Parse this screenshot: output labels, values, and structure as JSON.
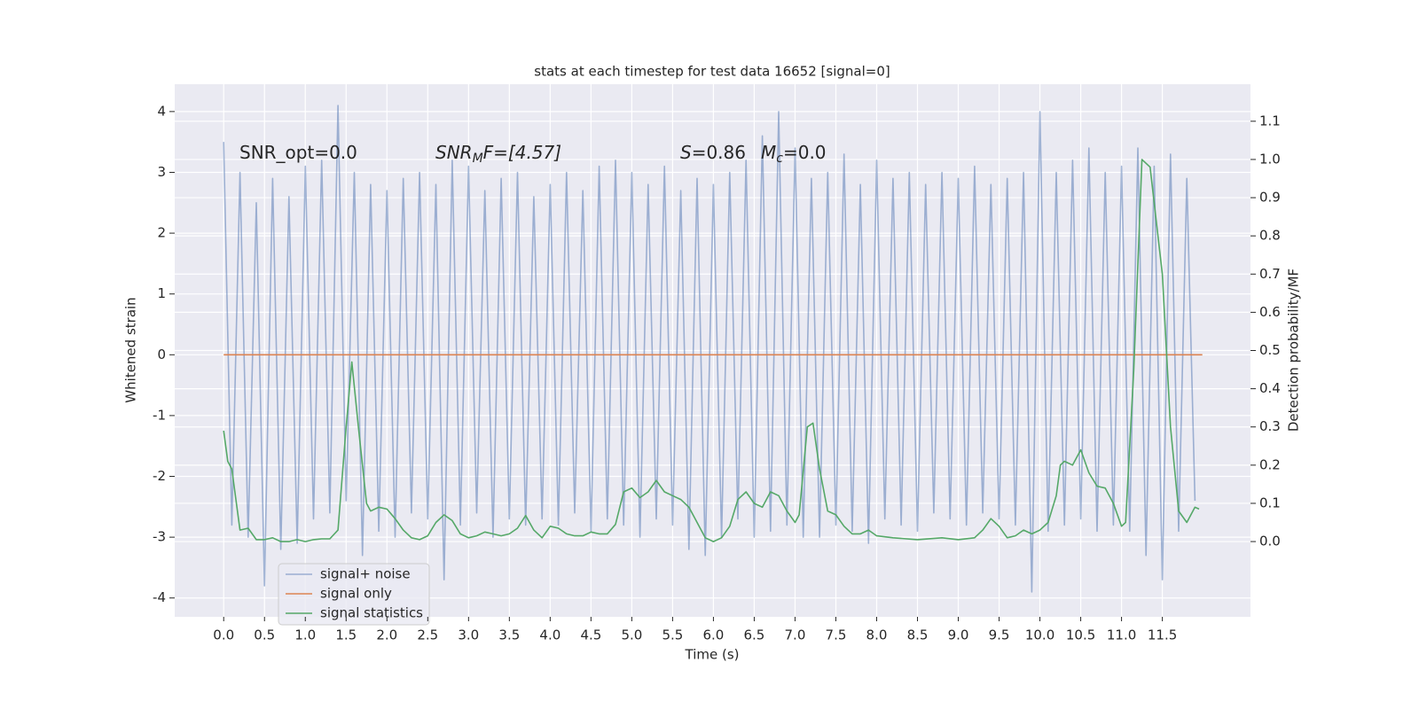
{
  "chart_data": {
    "type": "line",
    "title": "stats at each timestep for test data 16652 [signal=0]",
    "x_label": "Time (s)",
    "y_label": "Whitened strain",
    "y2_label": "Detection probability/MF",
    "xlim": [
      -0.6,
      12.58
    ],
    "ylim": [
      -4.31,
      4.45
    ],
    "y2lim": [
      -0.197,
      1.197
    ],
    "xticks": [
      {
        "value": 0,
        "label": "0.0"
      },
      0.5,
      {
        "value": 1,
        "label": "1.0"
      },
      1.5,
      {
        "value": 2,
        "label": "2.0"
      },
      2.5,
      {
        "value": 3,
        "label": "3.0"
      },
      3.5,
      {
        "value": 4,
        "label": "4.0"
      },
      4.5,
      {
        "value": 5,
        "label": "5.0"
      },
      5.5,
      {
        "value": 6,
        "label": "6.0"
      },
      6.5,
      {
        "value": 7,
        "label": "7.0"
      },
      7.5,
      {
        "value": 8,
        "label": "8.0"
      },
      8.5,
      {
        "value": 9,
        "label": "9.0"
      },
      9.5,
      {
        "value": 10,
        "label": "10.0"
      },
      10.5,
      {
        "value": 11,
        "label": "11.0"
      },
      11.5
    ],
    "yticks": [
      -4,
      -3,
      -2,
      -1,
      0,
      1,
      2,
      3,
      4
    ],
    "y2ticks": [
      {
        "value": 0,
        "label": "0.0"
      },
      0.1,
      0.2,
      0.3,
      0.4,
      0.5,
      0.6,
      0.7,
      0.8,
      0.9,
      {
        "value": 1,
        "label": "1.0"
      },
      1.1
    ],
    "grid": true,
    "legend": "lower left",
    "annotations": [
      [
        "SNR_opt=0.0"
      ],
      [
        "SNR",
        "M",
        "F=[4.57]"
      ],
      [
        "S",
        "=0.86"
      ],
      [
        "M",
        "c",
        "=0.0"
      ]
    ],
    "series": [
      {
        "name": "signal+ noise",
        "color": "#4c72b0",
        "opacity": 0.5,
        "x": [
          0.0,
          0.1,
          0.2,
          0.3,
          0.4,
          0.5,
          0.6,
          0.7,
          0.8,
          0.9,
          1.0,
          1.1,
          1.2,
          1.3,
          1.4,
          1.5,
          1.6,
          1.7,
          1.8,
          1.9,
          2.0,
          2.1,
          2.2,
          2.3,
          2.4,
          2.5,
          2.6,
          2.7,
          2.8,
          2.9,
          3.0,
          3.1,
          3.2,
          3.3,
          3.4,
          3.5,
          3.6,
          3.7,
          3.8,
          3.9,
          4.0,
          4.1,
          4.2,
          4.3,
          4.4,
          4.5,
          4.6,
          4.7,
          4.8,
          4.9,
          5.0,
          5.1,
          5.2,
          5.3,
          5.4,
          5.5,
          5.6,
          5.7,
          5.8,
          5.9,
          6.0,
          6.1,
          6.2,
          6.3,
          6.4,
          6.5,
          6.6,
          6.7,
          6.8,
          6.9,
          7.0,
          7.1,
          7.2,
          7.3,
          7.4,
          7.5,
          7.6,
          7.7,
          7.8,
          7.9,
          8.0,
          8.1,
          8.2,
          8.3,
          8.4,
          8.5,
          8.6,
          8.7,
          8.8,
          8.9,
          9.0,
          9.1,
          9.2,
          9.3,
          9.4,
          9.5,
          9.6,
          9.7,
          9.8,
          9.9,
          10.0,
          10.1,
          10.2,
          10.3,
          10.4,
          10.5,
          10.6,
          10.7,
          10.8,
          10.9,
          11.0,
          11.1,
          11.2,
          11.3,
          11.4,
          11.5,
          11.6,
          11.7,
          11.8,
          11.9
        ],
        "values": [
          3.5,
          -2.8,
          3.0,
          -3.0,
          2.5,
          -3.8,
          2.9,
          -3.2,
          2.6,
          -3.1,
          3.1,
          -2.7,
          3.2,
          -2.6,
          4.1,
          -2.4,
          3.0,
          -3.3,
          2.8,
          -2.9,
          2.7,
          -3.0,
          2.9,
          -2.6,
          3.0,
          -2.7,
          2.8,
          -3.7,
          3.2,
          -2.8,
          3.1,
          -2.6,
          2.7,
          -3.0,
          2.9,
          -2.7,
          3.0,
          -2.8,
          2.6,
          -2.7,
          2.8,
          -2.8,
          3.0,
          -2.6,
          2.7,
          -2.9,
          3.1,
          -2.7,
          3.2,
          -2.8,
          3.0,
          -3.0,
          2.8,
          -2.7,
          3.1,
          -2.8,
          2.7,
          -3.2,
          2.9,
          -3.3,
          2.8,
          -3.0,
          3.0,
          -2.7,
          3.2,
          -3.0,
          3.6,
          -2.9,
          4.0,
          -2.8,
          3.4,
          -3.0,
          2.9,
          -3.0,
          3.0,
          -2.8,
          3.3,
          -2.9,
          2.8,
          -3.1,
          3.2,
          -2.7,
          2.9,
          -2.8,
          3.0,
          -2.9,
          2.8,
          -2.6,
          3.0,
          -2.7,
          2.9,
          -2.8,
          3.1,
          -2.6,
          2.8,
          -2.7,
          2.9,
          -2.8,
          3.0,
          -3.9,
          4.0,
          -2.9,
          3.0,
          -2.8,
          3.2,
          -2.7,
          3.4,
          -2.9,
          3.0,
          -2.8,
          3.1,
          -2.9,
          3.4,
          -3.3,
          3.1,
          -3.7,
          3.3,
          -2.9,
          2.9,
          -2.4
        ]
      },
      {
        "name": "signal only",
        "color": "#dd8452",
        "opacity": 1,
        "x": [
          0.0,
          11.99
        ],
        "values": [
          0,
          0
        ]
      },
      {
        "name": "signal statistics",
        "color": "#55a868",
        "opacity": 1,
        "axis": "y2",
        "x": [
          0.0,
          0.05,
          0.1,
          0.2,
          0.3,
          0.4,
          0.5,
          0.6,
          0.7,
          0.8,
          0.9,
          1.0,
          1.1,
          1.2,
          1.3,
          1.4,
          1.5,
          1.57,
          1.65,
          1.75,
          1.8,
          1.9,
          2.0,
          2.1,
          2.2,
          2.3,
          2.4,
          2.5,
          2.6,
          2.7,
          2.8,
          2.9,
          3.0,
          3.1,
          3.2,
          3.3,
          3.4,
          3.5,
          3.6,
          3.7,
          3.8,
          3.9,
          4.0,
          4.1,
          4.2,
          4.3,
          4.4,
          4.5,
          4.6,
          4.7,
          4.8,
          4.9,
          5.0,
          5.1,
          5.2,
          5.3,
          5.4,
          5.5,
          5.6,
          5.7,
          5.8,
          5.9,
          6.0,
          6.1,
          6.2,
          6.3,
          6.4,
          6.5,
          6.6,
          6.7,
          6.8,
          6.9,
          7.0,
          7.05,
          7.15,
          7.22,
          7.3,
          7.4,
          7.5,
          7.6,
          7.7,
          7.8,
          7.9,
          8.0,
          8.2,
          8.5,
          8.8,
          9.0,
          9.2,
          9.3,
          9.4,
          9.5,
          9.6,
          9.7,
          9.8,
          9.9,
          10.0,
          10.1,
          10.2,
          10.25,
          10.3,
          10.4,
          10.5,
          10.6,
          10.7,
          10.8,
          10.9,
          11.0,
          11.05,
          11.15,
          11.25,
          11.35,
          11.5,
          11.6,
          11.7,
          11.8,
          11.9,
          11.95
        ],
        "values": [
          0.29,
          0.21,
          0.19,
          0.03,
          0.035,
          0.005,
          0.005,
          0.01,
          0.0,
          0.0,
          0.005,
          0.0,
          0.005,
          0.007,
          0.007,
          0.03,
          0.3,
          0.47,
          0.3,
          0.1,
          0.08,
          0.09,
          0.085,
          0.06,
          0.03,
          0.01,
          0.005,
          0.015,
          0.05,
          0.07,
          0.055,
          0.02,
          0.01,
          0.015,
          0.025,
          0.02,
          0.015,
          0.02,
          0.035,
          0.068,
          0.03,
          0.01,
          0.04,
          0.035,
          0.02,
          0.015,
          0.015,
          0.025,
          0.02,
          0.02,
          0.045,
          0.13,
          0.14,
          0.115,
          0.13,
          0.16,
          0.13,
          0.12,
          0.11,
          0.09,
          0.05,
          0.01,
          0.0,
          0.01,
          0.04,
          0.11,
          0.13,
          0.1,
          0.09,
          0.13,
          0.12,
          0.08,
          0.05,
          0.07,
          0.3,
          0.31,
          0.19,
          0.08,
          0.07,
          0.04,
          0.02,
          0.02,
          0.03,
          0.015,
          0.01,
          0.005,
          0.01,
          0.005,
          0.01,
          0.03,
          0.06,
          0.04,
          0.01,
          0.015,
          0.03,
          0.02,
          0.03,
          0.05,
          0.12,
          0.2,
          0.21,
          0.2,
          0.24,
          0.18,
          0.145,
          0.14,
          0.1,
          0.04,
          0.05,
          0.45,
          1.0,
          0.98,
          0.7,
          0.3,
          0.08,
          0.05,
          0.09,
          0.085
        ]
      }
    ]
  }
}
